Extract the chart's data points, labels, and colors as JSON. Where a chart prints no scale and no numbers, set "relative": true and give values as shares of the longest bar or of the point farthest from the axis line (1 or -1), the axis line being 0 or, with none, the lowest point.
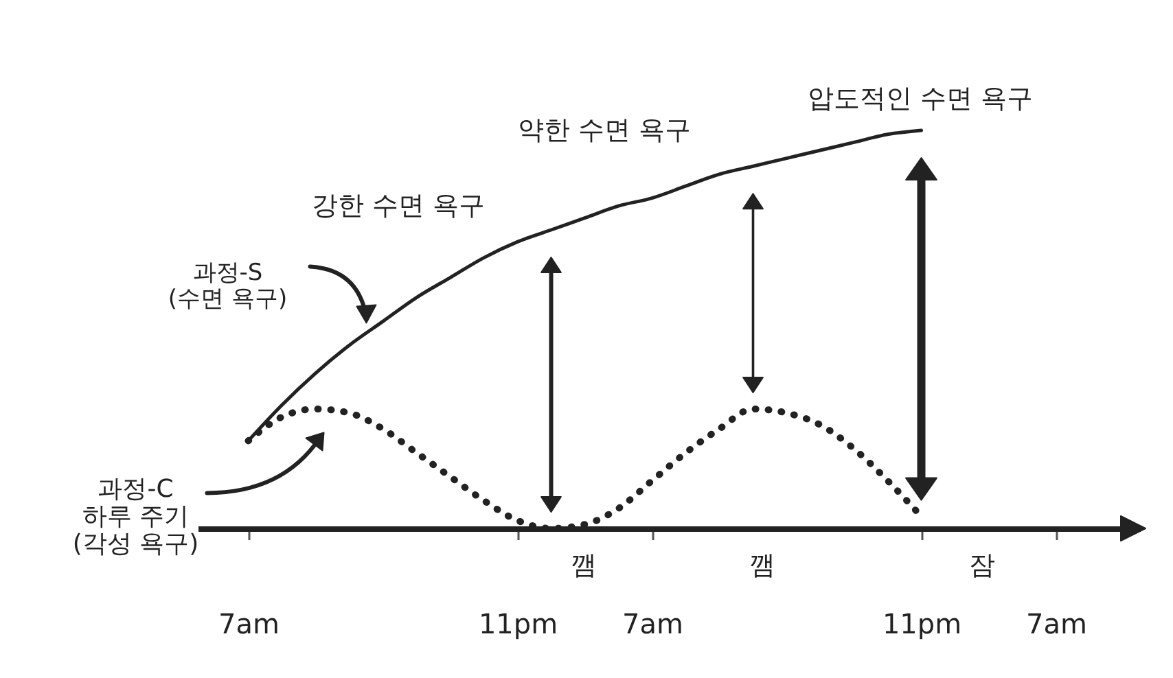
{
  "chart_data": {
    "type": "line",
    "relative": true,
    "marker": "none",
    "categories": [
      null,
      "7am",
      null,
      null,
      null,
      null,
      null,
      null,
      null,
      "11pm",
      null,
      null,
      null,
      "7am",
      null,
      null,
      null,
      null,
      null,
      null,
      null,
      "11pm",
      null,
      null,
      null,
      "7am",
      null,
      null
    ],
    "series": [
      {
        "name": "과정-S\n(수면 욕구)",
        "color": "#222222",
        "line_style": "solid",
        "values": [
          null,
          0.22,
          0.31,
          0.39,
          0.46,
          0.52,
          0.58,
          0.63,
          0.68,
          0.72,
          0.75,
          0.78,
          0.81,
          0.83,
          0.86,
          0.89,
          0.91,
          0.93,
          0.95,
          0.97,
          0.99,
          1.0,
          null,
          null,
          null,
          null,
          null,
          null
        ]
      },
      {
        "name": "과정-C\n하루 주기\n(각성 욕구)",
        "color": "#222222",
        "line_style": "dotted",
        "values": [
          null,
          0.22,
          0.28,
          0.3,
          0.29,
          0.25,
          0.19,
          0.13,
          0.07,
          0.02,
          0,
          0.01,
          0.05,
          0.12,
          0.19,
          0.25,
          0.3,
          0.29,
          0.26,
          0.2,
          0.12,
          0.03,
          null,
          null,
          null,
          null,
          null,
          null
        ]
      }
    ],
    "annotations": [
      "강한 수면 욕구",
      "약한 수면 욕구",
      "압도적인 수면 욕구",
      "깸",
      "깸",
      "잠"
    ]
  }
}
